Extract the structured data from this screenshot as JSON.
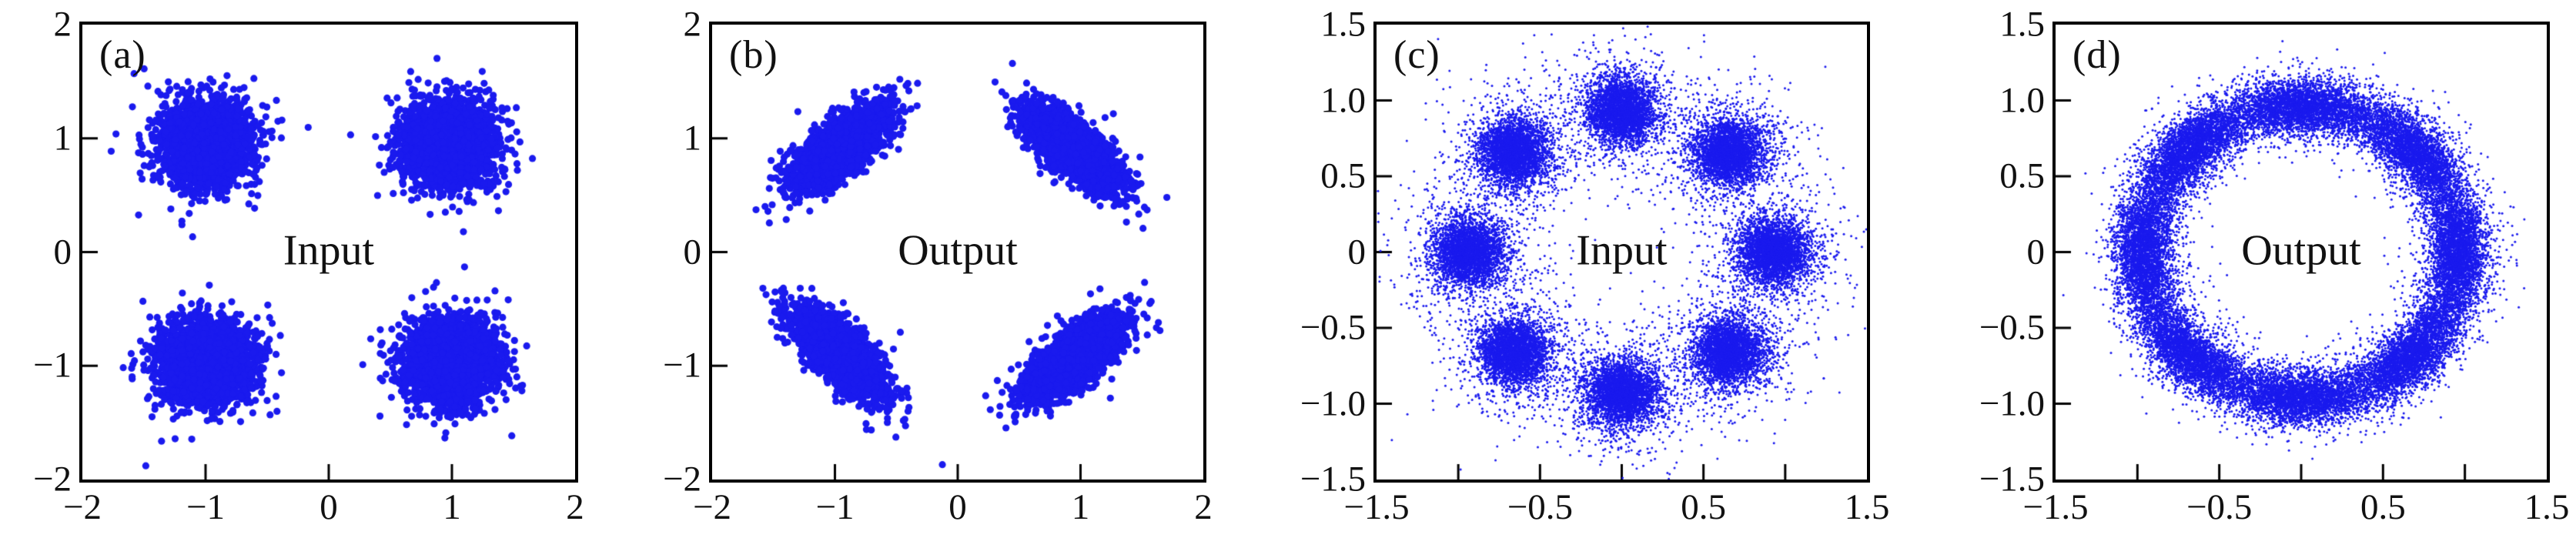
{
  "figure": {
    "background": "#ffffff",
    "axis_color": "#000000",
    "text_color": "#111111",
    "dot_color": "#1a1aee"
  },
  "chart_data": [
    {
      "type": "scatter",
      "panel_label": "(a)",
      "annotation": "Input",
      "description": "Four-point (QPSK-like) constellation, input: four circular Gaussian clusters at (±1, ±1)",
      "xlim": [
        -2,
        2
      ],
      "ylim": [
        -2,
        2
      ],
      "x_ticks": {
        "labels": [
          "−2",
          "−1",
          "0",
          "1",
          "2"
        ],
        "values": [
          -2,
          -1,
          0,
          1,
          2
        ],
        "marks": [
          -1,
          0,
          1
        ]
      },
      "y_ticks": {
        "labels": [
          "2",
          "1",
          "0",
          "−1",
          "−2"
        ],
        "values": [
          2,
          1,
          0,
          -1,
          -2
        ],
        "marks": [
          1,
          0,
          -1
        ]
      },
      "marker_px": 4.6,
      "clusters": [
        {
          "cx": -1.0,
          "cy": 0.96,
          "sx": 0.18,
          "sy": 0.18,
          "angle_deg": 0,
          "n": 2600,
          "tail_frac": 0.04,
          "tail_mult": 1.5
        },
        {
          "cx": 0.98,
          "cy": 0.95,
          "sx": 0.18,
          "sy": 0.18,
          "angle_deg": 0,
          "n": 2600,
          "tail_frac": 0.04,
          "tail_mult": 1.5
        },
        {
          "cx": -1.0,
          "cy": -0.97,
          "sx": 0.18,
          "sy": 0.18,
          "angle_deg": 0,
          "n": 2600,
          "tail_frac": 0.04,
          "tail_mult": 1.5
        },
        {
          "cx": 0.99,
          "cy": -0.96,
          "sx": 0.18,
          "sy": 0.18,
          "angle_deg": 0,
          "n": 2600,
          "tail_frac": 0.04,
          "tail_mult": 1.5
        }
      ]
    },
    {
      "type": "scatter",
      "panel_label": "(b)",
      "annotation": "Output",
      "description": "Four-point constellation, output: four tangentially elongated tilted Gaussian clusters at (±1, ±1)",
      "xlim": [
        -2,
        2
      ],
      "ylim": [
        -2,
        2
      ],
      "x_ticks": {
        "labels": [
          "−2",
          "−1",
          "0",
          "1",
          "2"
        ],
        "values": [
          -2,
          -1,
          0,
          1,
          2
        ],
        "marks": [
          -1,
          0,
          1
        ]
      },
      "y_ticks": {
        "labels": [
          "2",
          "1",
          "0",
          "−1",
          "−2"
        ],
        "values": [
          2,
          1,
          0,
          -1,
          -2
        ],
        "marks": [
          1,
          0,
          -1
        ]
      },
      "marker_px": 4.6,
      "clusters": [
        {
          "cx": -0.95,
          "cy": 0.92,
          "sx": 0.23,
          "sy": 0.095,
          "angle_deg": 42,
          "n": 2800,
          "tail_frac": 0.05,
          "tail_mult": 1.4
        },
        {
          "cx": 0.95,
          "cy": 0.9,
          "sx": 0.23,
          "sy": 0.095,
          "angle_deg": -42,
          "n": 2800,
          "tail_frac": 0.05,
          "tail_mult": 1.4
        },
        {
          "cx": -0.95,
          "cy": -0.9,
          "sx": 0.23,
          "sy": 0.095,
          "angle_deg": -48,
          "n": 2800,
          "tail_frac": 0.05,
          "tail_mult": 1.4
        },
        {
          "cx": 0.97,
          "cy": -0.92,
          "sx": 0.23,
          "sy": 0.095,
          "angle_deg": 40,
          "n": 2800,
          "tail_frac": 0.05,
          "tail_mult": 1.4
        }
      ]
    },
    {
      "type": "scatter",
      "panel_label": "(c)",
      "annotation": "Input",
      "description": "Eight-point (8-PSK-like) constellation, input: eight circular Gaussian clusters on a ring of radius ≈0.93",
      "xlim": [
        -1.5,
        1.5
      ],
      "ylim": [
        -1.5,
        1.5
      ],
      "x_ticks": {
        "labels": [
          "−1.5",
          "−0.5",
          "0.5",
          "1.5"
        ],
        "values": [
          -1.5,
          -0.5,
          0.5,
          1.5
        ],
        "marks": [
          -1,
          -0.5,
          0,
          0.5,
          1
        ]
      },
      "y_ticks": {
        "labels": [
          "1.5",
          "1.0",
          "0.5",
          "0",
          "−0.5",
          "−1.0",
          "−1.5"
        ],
        "values": [
          1.5,
          1.0,
          0.5,
          0,
          -0.5,
          -1.0,
          -1.5
        ],
        "marks": [
          1,
          0.5,
          0,
          -0.5,
          -1
        ]
      },
      "marker_px": 1.5,
      "clusters": [
        {
          "cx": 0.93,
          "cy": 0.0,
          "sx": 0.105,
          "sy": 0.105,
          "angle_deg": 0,
          "n": 3800,
          "tail_frac": 0.18,
          "tail_mult": 2.2
        },
        {
          "cx": 0.658,
          "cy": 0.658,
          "sx": 0.105,
          "sy": 0.105,
          "angle_deg": 0,
          "n": 3800,
          "tail_frac": 0.18,
          "tail_mult": 2.2
        },
        {
          "cx": 0.0,
          "cy": 0.93,
          "sx": 0.105,
          "sy": 0.105,
          "angle_deg": 0,
          "n": 3800,
          "tail_frac": 0.18,
          "tail_mult": 2.2
        },
        {
          "cx": -0.658,
          "cy": 0.658,
          "sx": 0.105,
          "sy": 0.105,
          "angle_deg": 0,
          "n": 3800,
          "tail_frac": 0.18,
          "tail_mult": 2.2
        },
        {
          "cx": -0.93,
          "cy": 0.0,
          "sx": 0.105,
          "sy": 0.105,
          "angle_deg": 0,
          "n": 3800,
          "tail_frac": 0.18,
          "tail_mult": 2.2
        },
        {
          "cx": -0.658,
          "cy": -0.658,
          "sx": 0.105,
          "sy": 0.105,
          "angle_deg": 0,
          "n": 3800,
          "tail_frac": 0.18,
          "tail_mult": 2.2
        },
        {
          "cx": 0.0,
          "cy": -0.93,
          "sx": 0.105,
          "sy": 0.105,
          "angle_deg": 0,
          "n": 3800,
          "tail_frac": 0.18,
          "tail_mult": 2.2
        },
        {
          "cx": 0.658,
          "cy": -0.658,
          "sx": 0.105,
          "sy": 0.105,
          "angle_deg": 0,
          "n": 3800,
          "tail_frac": 0.18,
          "tail_mult": 2.2
        }
      ]
    },
    {
      "type": "scatter",
      "panel_label": "(d)",
      "annotation": "Output",
      "description": "Eight-point constellation, output: eight tangentially smeared clusters merging into a ring of radius ≈0.97",
      "xlim": [
        -1.5,
        1.5
      ],
      "ylim": [
        -1.5,
        1.5
      ],
      "x_ticks": {
        "labels": [
          "−1.5",
          "−0.5",
          "0.5",
          "1.5"
        ],
        "values": [
          -1.5,
          -0.5,
          0.5,
          1.5
        ],
        "marks": [
          -1,
          -0.5,
          0,
          0.5,
          1
        ]
      },
      "y_ticks": {
        "labels": [
          "1.5",
          "1.0",
          "0.5",
          "0",
          "−0.5",
          "−1.0",
          "−1.5"
        ],
        "values": [
          1.5,
          1.0,
          0.5,
          0,
          -0.5,
          -1.0,
          -1.5
        ],
        "marks": [
          1,
          0.5,
          0,
          -0.5,
          -1
        ]
      },
      "marker_px": 1.5,
      "clusters": [
        {
          "polar": true,
          "angle_deg": 0,
          "radius": 0.97,
          "sigma_theta_deg": 13,
          "sigma_r": 0.085,
          "n": 3800,
          "tail_frac": 0.15,
          "tail_mult": 1.7
        },
        {
          "polar": true,
          "angle_deg": 45,
          "radius": 0.97,
          "sigma_theta_deg": 13,
          "sigma_r": 0.085,
          "n": 3800,
          "tail_frac": 0.15,
          "tail_mult": 1.7
        },
        {
          "polar": true,
          "angle_deg": 90,
          "radius": 0.97,
          "sigma_theta_deg": 13,
          "sigma_r": 0.085,
          "n": 3800,
          "tail_frac": 0.15,
          "tail_mult": 1.7
        },
        {
          "polar": true,
          "angle_deg": 135,
          "radius": 0.97,
          "sigma_theta_deg": 13,
          "sigma_r": 0.085,
          "n": 3800,
          "tail_frac": 0.15,
          "tail_mult": 1.7
        },
        {
          "polar": true,
          "angle_deg": 180,
          "radius": 0.97,
          "sigma_theta_deg": 13,
          "sigma_r": 0.085,
          "n": 3800,
          "tail_frac": 0.15,
          "tail_mult": 1.7
        },
        {
          "polar": true,
          "angle_deg": 225,
          "radius": 0.97,
          "sigma_theta_deg": 13,
          "sigma_r": 0.085,
          "n": 3800,
          "tail_frac": 0.15,
          "tail_mult": 1.7
        },
        {
          "polar": true,
          "angle_deg": 270,
          "radius": 0.97,
          "sigma_theta_deg": 13,
          "sigma_r": 0.085,
          "n": 3800,
          "tail_frac": 0.15,
          "tail_mult": 1.7
        },
        {
          "polar": true,
          "angle_deg": 315,
          "radius": 0.97,
          "sigma_theta_deg": 13,
          "sigma_r": 0.085,
          "n": 3800,
          "tail_frac": 0.15,
          "tail_mult": 1.7
        }
      ]
    }
  ]
}
